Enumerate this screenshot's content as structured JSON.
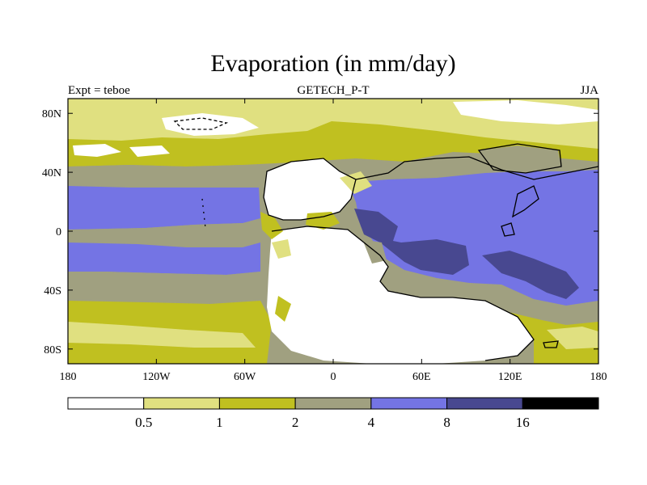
{
  "title": "Evaporation (in mm/day)",
  "subtitle_center": "GETECH_P-T",
  "subtitle_left": "Expt = teboe",
  "subtitle_right": "JJA",
  "colors": {
    "c0": "#ffffff",
    "c1": "#e0e080",
    "c2": "#c0c020",
    "c3": "#a0a080",
    "c4": "#7474e4",
    "c5": "#484890",
    "c6": "#000000",
    "coast": "#000000"
  },
  "chart_data": {
    "type": "heatmap",
    "title": "Evaporation (in mm/day)",
    "variable": "Evaporation",
    "units": "mm/day",
    "experiment": "teboe",
    "dataset": "GETECH_P-T",
    "season": "JJA",
    "x_ticks": [
      "180",
      "120W",
      "60W",
      "0",
      "60E",
      "120E",
      "180"
    ],
    "y_ticks": [
      "80N",
      "40N",
      "0",
      "40S",
      "80S"
    ],
    "xlim": [
      -180,
      180
    ],
    "ylim": [
      -90,
      90
    ],
    "colorbar": {
      "levels": [
        "0.5",
        "1",
        "2",
        "4",
        "8",
        "16"
      ],
      "bins": [
        "<0.5",
        "0.5-1",
        "1-2",
        "2-4",
        "4-8",
        "8-16",
        ">16"
      ]
    }
  }
}
